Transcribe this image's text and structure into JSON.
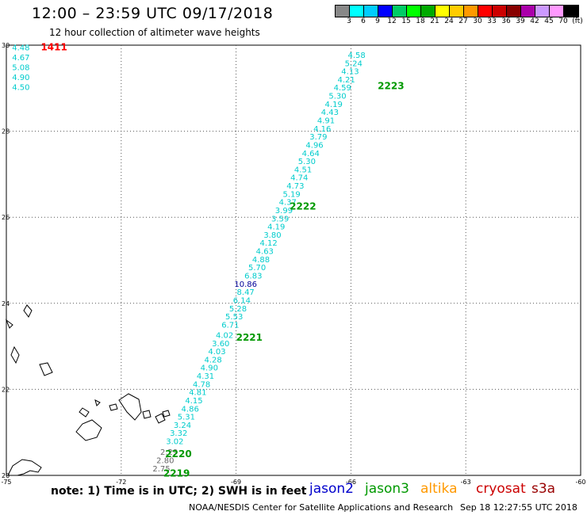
{
  "header": {
    "title": "12:00 – 23:59 UTC 09/17/2018",
    "subtitle": "12 hour collection of altimeter wave heights"
  },
  "scale": {
    "colors": [
      "#888888",
      "#00ffff",
      "#00ccff",
      "#0000ff",
      "#00cc66",
      "#00ff00",
      "#00aa00",
      "#ffff00",
      "#ffcc00",
      "#ff9900",
      "#ff0000",
      "#cc0000",
      "#880000",
      "#aa00aa",
      "#cc99ff",
      "#ff99ff",
      "#000000"
    ],
    "labels": [
      "3",
      "6",
      "9",
      "12",
      "15",
      "18",
      "21",
      "24",
      "27",
      "30",
      "33",
      "36",
      "39",
      "42",
      "45",
      "70",
      "(ft)"
    ]
  },
  "axes": {
    "x_ticks": [
      "-75",
      "-72",
      "-69",
      "-66",
      "-63",
      "-60"
    ],
    "y_ticks": [
      "30",
      "28",
      "26",
      "24",
      "22",
      "20"
    ],
    "lon_range": [
      -75,
      -60
    ],
    "lat_range": [
      20,
      30
    ],
    "grid": true
  },
  "passes": [
    {
      "label": "1411",
      "color": "#ff0000",
      "lon": -74.1,
      "lat": 29.95
    },
    {
      "label": "2223",
      "color": "#009900",
      "lon": -65.3,
      "lat": 29.05
    },
    {
      "label": "2222",
      "color": "#009900",
      "lon": -67.6,
      "lat": 26.25
    },
    {
      "label": "2221",
      "color": "#009900",
      "lon": -69.0,
      "lat": 23.2
    },
    {
      "label": "2220",
      "color": "#009900",
      "lon": -70.85,
      "lat": 20.5
    },
    {
      "label": "2219",
      "color": "#009900",
      "lon": -70.9,
      "lat": 20.05
    }
  ],
  "left_track": {
    "color": "#00cccc",
    "values": [
      "4.48",
      "4.67",
      "5.08",
      "4.90",
      "4.50"
    ],
    "lats": [
      29.95,
      29.72,
      29.49,
      29.26,
      29.03
    ],
    "lon": -74.85
  },
  "main_track": {
    "default_color": "#00cccc",
    "points": [
      {
        "v": "4.58",
        "lat": 29.78,
        "lon": -65.85
      },
      {
        "v": "5.24",
        "lat": 29.59,
        "lon": -65.93
      },
      {
        "v": "4.13",
        "lat": 29.4,
        "lon": -66.02
      },
      {
        "v": "4.21",
        "lat": 29.21,
        "lon": -66.12
      },
      {
        "v": "4.59",
        "lat": 29.02,
        "lon": -66.22
      },
      {
        "v": "5.30",
        "lat": 28.83,
        "lon": -66.35
      },
      {
        "v": "4.19",
        "lat": 28.64,
        "lon": -66.45
      },
      {
        "v": "4.43",
        "lat": 28.45,
        "lon": -66.55
      },
      {
        "v": "4.91",
        "lat": 28.26,
        "lon": -66.65
      },
      {
        "v": "4.16",
        "lat": 28.07,
        "lon": -66.75
      },
      {
        "v": "3.79",
        "lat": 27.88,
        "lon": -66.85
      },
      {
        "v": "4.96",
        "lat": 27.69,
        "lon": -66.95
      },
      {
        "v": "4.64",
        "lat": 27.5,
        "lon": -67.05
      },
      {
        "v": "5.30",
        "lat": 27.31,
        "lon": -67.15
      },
      {
        "v": "4.51",
        "lat": 27.12,
        "lon": -67.25
      },
      {
        "v": "4.74",
        "lat": 26.93,
        "lon": -67.35
      },
      {
        "v": "4.73",
        "lat": 26.74,
        "lon": -67.45
      },
      {
        "v": "5.19",
        "lat": 26.55,
        "lon": -67.55
      },
      {
        "v": "4.37",
        "lat": 26.36,
        "lon": -67.65
      },
      {
        "v": "3.99",
        "lat": 26.17,
        "lon": -67.75
      },
      {
        "v": "3.59",
        "lat": 25.98,
        "lon": -67.85
      },
      {
        "v": "4.19",
        "lat": 25.79,
        "lon": -67.95
      },
      {
        "v": "3.80",
        "lat": 25.6,
        "lon": -68.05
      },
      {
        "v": "4.12",
        "lat": 25.41,
        "lon": -68.15
      },
      {
        "v": "4.63",
        "lat": 25.22,
        "lon": -68.25
      },
      {
        "v": "4.88",
        "lat": 25.03,
        "lon": -68.35
      },
      {
        "v": "5.70",
        "lat": 24.84,
        "lon": -68.45
      },
      {
        "v": "6.83",
        "lat": 24.65,
        "lon": -68.55
      },
      {
        "v": "10.86",
        "lat": 24.46,
        "lon": -68.75,
        "color": "#000099"
      },
      {
        "v": "8.47",
        "lat": 24.27,
        "lon": -68.75
      },
      {
        "v": "6.14",
        "lat": 24.08,
        "lon": -68.85
      },
      {
        "v": "5.28",
        "lat": 23.89,
        "lon": -68.95
      },
      {
        "v": "5.53",
        "lat": 23.7,
        "lon": -69.05
      },
      {
        "v": "6.71",
        "lat": 23.51,
        "lon": -69.15
      },
      {
        "v": "4.02",
        "lat": 23.27,
        "lon": -69.3
      },
      {
        "v": "3.60",
        "lat": 23.08,
        "lon": -69.4
      },
      {
        "v": "4.03",
        "lat": 22.89,
        "lon": -69.5
      },
      {
        "v": "4.28",
        "lat": 22.7,
        "lon": -69.6
      },
      {
        "v": "4.90",
        "lat": 22.51,
        "lon": -69.7
      },
      {
        "v": "4.31",
        "lat": 22.32,
        "lon": -69.8
      },
      {
        "v": "4.78",
        "lat": 22.13,
        "lon": -69.9
      },
      {
        "v": "4.81",
        "lat": 21.94,
        "lon": -70.0
      },
      {
        "v": "4.15",
        "lat": 21.75,
        "lon": -70.1
      },
      {
        "v": "4.86",
        "lat": 21.56,
        "lon": -70.2
      },
      {
        "v": "5.31",
        "lat": 21.37,
        "lon": -70.3
      },
      {
        "v": "3.24",
        "lat": 21.18,
        "lon": -70.4
      },
      {
        "v": "3.32",
        "lat": 20.99,
        "lon": -70.5
      },
      {
        "v": "3.02",
        "lat": 20.8,
        "lon": -70.6
      },
      {
        "v": "2.29",
        "lat": 20.55,
        "lon": -70.75,
        "color": "#666666"
      },
      {
        "v": "2.80",
        "lat": 20.36,
        "lon": -70.85,
        "color": "#666666"
      },
      {
        "v": "2.75",
        "lat": 20.17,
        "lon": -70.95,
        "color": "#666666"
      }
    ]
  },
  "legend": {
    "note": "note: 1) Time is in UTC; 2) SWH is in feet",
    "satellites": [
      {
        "name": "jason2",
        "color": "#0000cc"
      },
      {
        "name": "jason3",
        "color": "#009900"
      },
      {
        "name": "altika",
        "color": "#ff9900"
      },
      {
        "name": "cryosat",
        "color": "#cc0000"
      },
      {
        "name": "s3a",
        "color": "#990000"
      }
    ]
  },
  "footer": {
    "credit": "NOAA/NESDIS Center for Satellite Applications and Research",
    "timestamp": "Sep 18 12:27:55 UTC 2018"
  }
}
